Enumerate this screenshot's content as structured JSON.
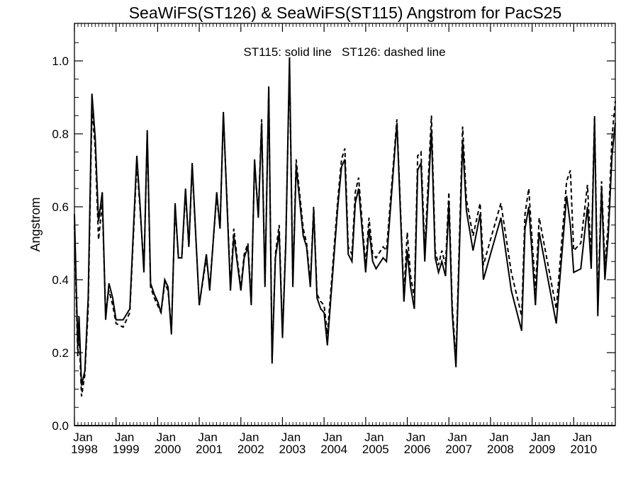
{
  "chart_data": {
    "type": "line",
    "title": "SeaWiFS(ST126) & SeaWiFS(ST115)  Angstrom for PacS25",
    "annotation": "ST115: solid line   ST126: dashed line",
    "ylabel": "Angstrom",
    "xlabel": "",
    "ylim": [
      0.0,
      1.1
    ],
    "yticks": [
      "0.0",
      "0.2",
      "0.4",
      "0.6",
      "0.8",
      "1.0"
    ],
    "xlim": [
      1998.0,
      2011.0
    ],
    "xticks": [
      {
        "month": "Jan",
        "year": "1998"
      },
      {
        "month": "Jan",
        "year": "1999"
      },
      {
        "month": "Jan",
        "year": "2000"
      },
      {
        "month": "Jan",
        "year": "2001"
      },
      {
        "month": "Jan",
        "year": "2002"
      },
      {
        "month": "Jan",
        "year": "2003"
      },
      {
        "month": "Jan",
        "year": "2004"
      },
      {
        "month": "Jan",
        "year": "2005"
      },
      {
        "month": "Jan",
        "year": "2006"
      },
      {
        "month": "Jan",
        "year": "2007"
      },
      {
        "month": "Jan",
        "year": "2008"
      },
      {
        "month": "Jan",
        "year": "2009"
      },
      {
        "month": "Jan",
        "year": "2010"
      }
    ],
    "grid": false,
    "series": [
      {
        "name": "ST115",
        "style": "solid",
        "color": "#000000",
        "points": [
          [
            1998.0,
            0.58
          ],
          [
            1998.08,
            0.22
          ],
          [
            1998.11,
            0.3
          ],
          [
            1998.17,
            0.11
          ],
          [
            1998.25,
            0.15
          ],
          [
            1998.33,
            0.35
          ],
          [
            1998.42,
            0.91
          ],
          [
            1998.5,
            0.79
          ],
          [
            1998.58,
            0.56
          ],
          [
            1998.67,
            0.64
          ],
          [
            1998.75,
            0.29
          ],
          [
            1998.83,
            0.39
          ],
          [
            1998.92,
            0.35
          ],
          [
            1999.0,
            0.29
          ],
          [
            1999.17,
            0.29
          ],
          [
            1999.33,
            0.32
          ],
          [
            1999.5,
            0.74
          ],
          [
            1999.58,
            0.6
          ],
          [
            1999.67,
            0.42
          ],
          [
            1999.75,
            0.81
          ],
          [
            1999.83,
            0.39
          ],
          [
            1999.92,
            0.36
          ],
          [
            2000.0,
            0.34
          ],
          [
            2000.08,
            0.31
          ],
          [
            2000.17,
            0.4
          ],
          [
            2000.25,
            0.38
          ],
          [
            2000.33,
            0.25
          ],
          [
            2000.42,
            0.61
          ],
          [
            2000.5,
            0.46
          ],
          [
            2000.58,
            0.46
          ],
          [
            2000.67,
            0.65
          ],
          [
            2000.75,
            0.49
          ],
          [
            2000.83,
            0.72
          ],
          [
            2001.0,
            0.33
          ],
          [
            2001.17,
            0.47
          ],
          [
            2001.25,
            0.37
          ],
          [
            2001.42,
            0.64
          ],
          [
            2001.5,
            0.54
          ],
          [
            2001.58,
            0.86
          ],
          [
            2001.67,
            0.6
          ],
          [
            2001.75,
            0.37
          ],
          [
            2001.83,
            0.52
          ],
          [
            2001.92,
            0.44
          ],
          [
            2002.0,
            0.37
          ],
          [
            2002.08,
            0.46
          ],
          [
            2002.17,
            0.49
          ],
          [
            2002.25,
            0.33
          ],
          [
            2002.33,
            0.73
          ],
          [
            2002.42,
            0.57
          ],
          [
            2002.5,
            0.83
          ],
          [
            2002.58,
            0.38
          ],
          [
            2002.67,
            0.93
          ],
          [
            2002.75,
            0.17
          ],
          [
            2002.83,
            0.46
          ],
          [
            2002.92,
            0.53
          ],
          [
            2003.0,
            0.24
          ],
          [
            2003.08,
            0.5
          ],
          [
            2003.17,
            1.01
          ],
          [
            2003.25,
            0.38
          ],
          [
            2003.33,
            0.71
          ],
          [
            2003.5,
            0.52
          ],
          [
            2003.58,
            0.49
          ],
          [
            2003.67,
            0.38
          ],
          [
            2003.75,
            0.59
          ],
          [
            2003.83,
            0.35
          ],
          [
            2003.92,
            0.32
          ],
          [
            2004.0,
            0.31
          ],
          [
            2004.08,
            0.22
          ],
          [
            2004.17,
            0.36
          ],
          [
            2004.33,
            0.6
          ],
          [
            2004.42,
            0.71
          ],
          [
            2004.5,
            0.73
          ],
          [
            2004.58,
            0.47
          ],
          [
            2004.67,
            0.45
          ],
          [
            2004.75,
            0.61
          ],
          [
            2004.83,
            0.65
          ],
          [
            2004.92,
            0.53
          ],
          [
            2005.0,
            0.42
          ],
          [
            2005.08,
            0.54
          ],
          [
            2005.17,
            0.45
          ],
          [
            2005.25,
            0.43
          ],
          [
            2005.42,
            0.46
          ],
          [
            2005.5,
            0.45
          ],
          [
            2005.75,
            0.83
          ],
          [
            2005.92,
            0.34
          ],
          [
            2006.0,
            0.48
          ],
          [
            2006.08,
            0.38
          ],
          [
            2006.17,
            0.32
          ],
          [
            2006.25,
            0.7
          ],
          [
            2006.33,
            0.72
          ],
          [
            2006.42,
            0.45
          ],
          [
            2006.58,
            0.81
          ],
          [
            2006.67,
            0.46
          ],
          [
            2006.75,
            0.42
          ],
          [
            2006.83,
            0.45
          ],
          [
            2006.92,
            0.41
          ],
          [
            2007.0,
            0.61
          ],
          [
            2007.08,
            0.31
          ],
          [
            2007.17,
            0.16
          ],
          [
            2007.33,
            0.78
          ],
          [
            2007.42,
            0.59
          ],
          [
            2007.58,
            0.48
          ],
          [
            2007.75,
            0.58
          ],
          [
            2007.83,
            0.4
          ],
          [
            2008.0,
            0.47
          ],
          [
            2008.25,
            0.57
          ],
          [
            2008.5,
            0.37
          ],
          [
            2008.75,
            0.26
          ],
          [
            2008.83,
            0.54
          ],
          [
            2008.92,
            0.6
          ],
          [
            2009.0,
            0.47
          ],
          [
            2009.08,
            0.33
          ],
          [
            2009.17,
            0.53
          ],
          [
            2009.58,
            0.28
          ],
          [
            2009.83,
            0.63
          ],
          [
            2009.92,
            0.55
          ],
          [
            2010.0,
            0.42
          ],
          [
            2010.17,
            0.43
          ],
          [
            2010.33,
            0.6
          ],
          [
            2010.42,
            0.43
          ],
          [
            2010.5,
            0.84
          ],
          [
            2010.58,
            0.3
          ],
          [
            2010.67,
            0.65
          ],
          [
            2010.75,
            0.4
          ],
          [
            2010.83,
            0.52
          ],
          [
            2010.92,
            0.74
          ],
          [
            2011.0,
            0.83
          ]
        ]
      },
      {
        "name": "ST126",
        "style": "dashed",
        "color": "#000000",
        "points": [
          [
            1998.0,
            0.55
          ],
          [
            1998.08,
            0.19
          ],
          [
            1998.11,
            0.26
          ],
          [
            1998.17,
            0.08
          ],
          [
            1998.25,
            0.14
          ],
          [
            1998.33,
            0.32
          ],
          [
            1998.42,
            0.87
          ],
          [
            1998.5,
            0.76
          ],
          [
            1998.58,
            0.51
          ],
          [
            1998.67,
            0.61
          ],
          [
            1998.75,
            0.31
          ],
          [
            1998.83,
            0.37
          ],
          [
            1998.92,
            0.33
          ],
          [
            1999.0,
            0.28
          ],
          [
            1999.17,
            0.27
          ],
          [
            1999.33,
            0.31
          ],
          [
            1999.5,
            0.72
          ],
          [
            1999.58,
            0.59
          ],
          [
            1999.67,
            0.43
          ],
          [
            1999.75,
            0.8
          ],
          [
            1999.83,
            0.38
          ],
          [
            1999.92,
            0.35
          ],
          [
            2000.0,
            0.33
          ],
          [
            2000.08,
            0.31
          ],
          [
            2000.17,
            0.39
          ],
          [
            2000.25,
            0.37
          ],
          [
            2000.33,
            0.26
          ],
          [
            2000.42,
            0.6
          ],
          [
            2000.5,
            0.46
          ],
          [
            2000.58,
            0.46
          ],
          [
            2000.67,
            0.64
          ],
          [
            2000.75,
            0.49
          ],
          [
            2000.83,
            0.71
          ],
          [
            2001.0,
            0.33
          ],
          [
            2001.17,
            0.46
          ],
          [
            2001.25,
            0.38
          ],
          [
            2001.42,
            0.63
          ],
          [
            2001.5,
            0.54
          ],
          [
            2001.58,
            0.85
          ],
          [
            2001.67,
            0.61
          ],
          [
            2001.75,
            0.38
          ],
          [
            2001.83,
            0.54
          ],
          [
            2001.92,
            0.45
          ],
          [
            2002.0,
            0.38
          ],
          [
            2002.08,
            0.47
          ],
          [
            2002.17,
            0.5
          ],
          [
            2002.25,
            0.34
          ],
          [
            2002.33,
            0.72
          ],
          [
            2002.42,
            0.58
          ],
          [
            2002.5,
            0.84
          ],
          [
            2002.58,
            0.39
          ],
          [
            2002.67,
            0.92
          ],
          [
            2002.75,
            0.18
          ],
          [
            2002.83,
            0.47
          ],
          [
            2002.92,
            0.55
          ],
          [
            2003.0,
            0.25
          ],
          [
            2003.08,
            0.51
          ],
          [
            2003.17,
            0.99
          ],
          [
            2003.25,
            0.39
          ],
          [
            2003.33,
            0.73
          ],
          [
            2003.5,
            0.54
          ],
          [
            2003.58,
            0.5
          ],
          [
            2003.67,
            0.39
          ],
          [
            2003.75,
            0.6
          ],
          [
            2003.83,
            0.36
          ],
          [
            2003.92,
            0.34
          ],
          [
            2004.0,
            0.33
          ],
          [
            2004.08,
            0.25
          ],
          [
            2004.17,
            0.38
          ],
          [
            2004.33,
            0.62
          ],
          [
            2004.42,
            0.73
          ],
          [
            2004.5,
            0.76
          ],
          [
            2004.58,
            0.49
          ],
          [
            2004.67,
            0.47
          ],
          [
            2004.75,
            0.64
          ],
          [
            2004.83,
            0.68
          ],
          [
            2004.92,
            0.55
          ],
          [
            2005.0,
            0.44
          ],
          [
            2005.08,
            0.57
          ],
          [
            2005.17,
            0.47
          ],
          [
            2005.25,
            0.46
          ],
          [
            2005.42,
            0.49
          ],
          [
            2005.5,
            0.48
          ],
          [
            2005.75,
            0.84
          ],
          [
            2005.92,
            0.36
          ],
          [
            2006.0,
            0.53
          ],
          [
            2006.08,
            0.41
          ],
          [
            2006.17,
            0.35
          ],
          [
            2006.25,
            0.74
          ],
          [
            2006.33,
            0.75
          ],
          [
            2006.42,
            0.48
          ],
          [
            2006.58,
            0.85
          ],
          [
            2006.67,
            0.48
          ],
          [
            2006.75,
            0.44
          ],
          [
            2006.83,
            0.48
          ],
          [
            2006.92,
            0.44
          ],
          [
            2007.0,
            0.64
          ],
          [
            2007.08,
            0.33
          ],
          [
            2007.17,
            0.18
          ],
          [
            2007.33,
            0.82
          ],
          [
            2007.42,
            0.62
          ],
          [
            2007.58,
            0.52
          ],
          [
            2007.75,
            0.61
          ],
          [
            2007.83,
            0.44
          ],
          [
            2008.0,
            0.51
          ],
          [
            2008.25,
            0.61
          ],
          [
            2008.5,
            0.42
          ],
          [
            2008.75,
            0.3
          ],
          [
            2008.83,
            0.58
          ],
          [
            2008.92,
            0.65
          ],
          [
            2009.0,
            0.51
          ],
          [
            2009.08,
            0.37
          ],
          [
            2009.17,
            0.57
          ],
          [
            2009.58,
            0.32
          ],
          [
            2009.83,
            0.67
          ],
          [
            2009.92,
            0.7
          ],
          [
            2010.0,
            0.48
          ],
          [
            2010.17,
            0.5
          ],
          [
            2010.33,
            0.66
          ],
          [
            2010.42,
            0.46
          ],
          [
            2010.5,
            0.85
          ],
          [
            2010.58,
            0.33
          ],
          [
            2010.67,
            0.67
          ],
          [
            2010.75,
            0.44
          ],
          [
            2010.83,
            0.55
          ],
          [
            2010.92,
            0.79
          ],
          [
            2011.0,
            0.89
          ]
        ]
      }
    ]
  }
}
